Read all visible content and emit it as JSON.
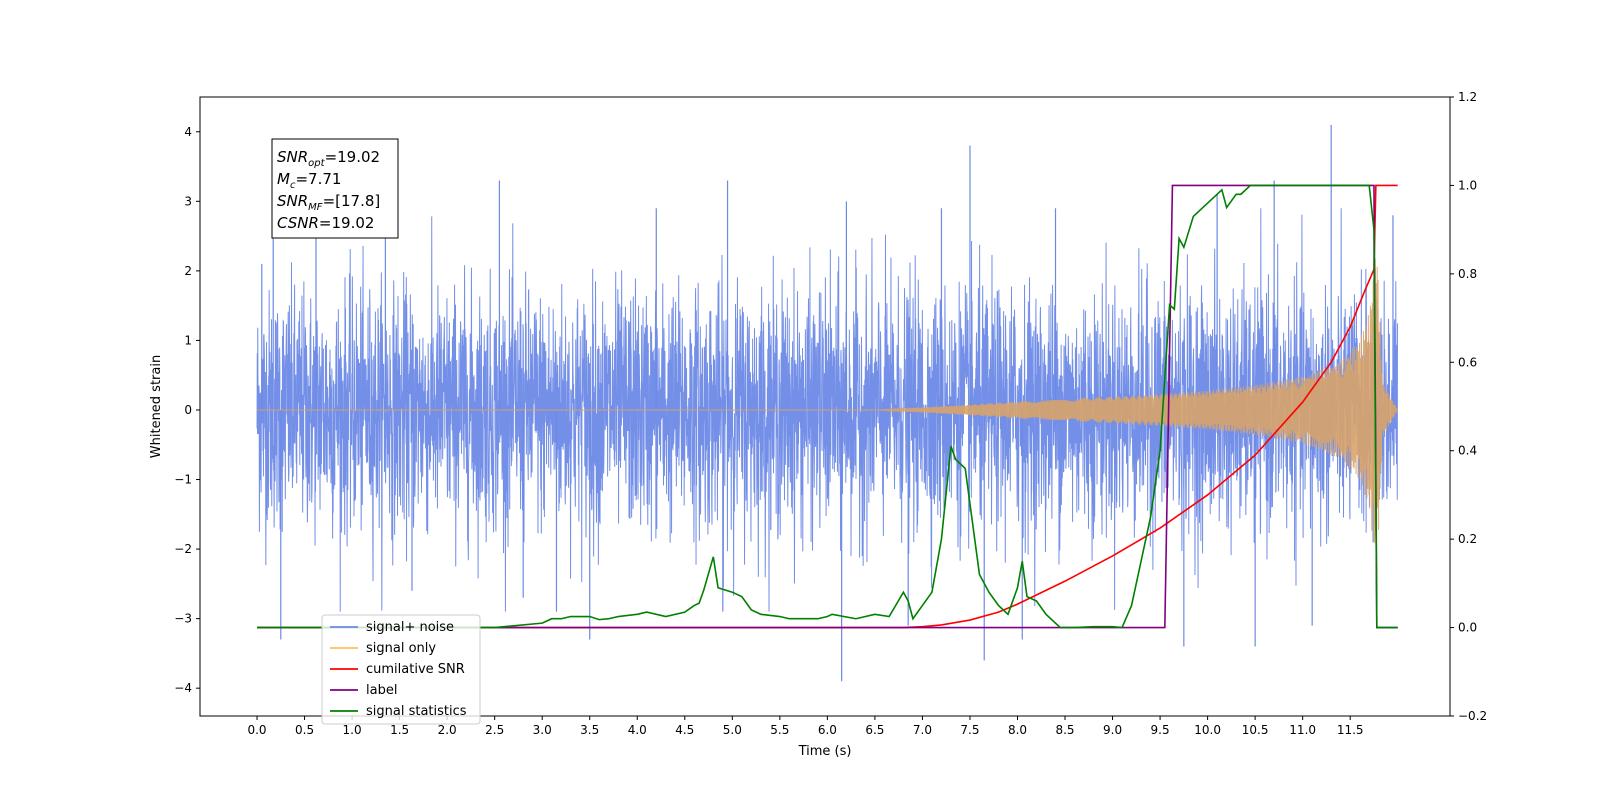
{
  "chart_data": {
    "type": "line",
    "xlabel": "Time (s)",
    "ylabel": "Whitened strain",
    "xlim": [
      -0.6,
      12.55
    ],
    "ylim": [
      -4.4,
      4.5
    ],
    "y2lim": [
      -0.2,
      1.2
    ],
    "x_ticks": [
      0.0,
      0.5,
      1.0,
      1.5,
      2.0,
      2.5,
      3.0,
      3.5,
      4.0,
      4.5,
      5.0,
      5.5,
      6.0,
      6.5,
      7.0,
      7.5,
      8.0,
      8.5,
      9.0,
      9.5,
      10.0,
      10.5,
      11.0,
      11.5
    ],
    "x_tick_labels": [
      "0.0",
      "0.5",
      "1.0",
      "1.5",
      "2.0",
      "2.5",
      "3.0",
      "3.5",
      "4.0",
      "4.5",
      "5.0",
      "5.5",
      "6.0",
      "6.5",
      "7.0",
      "7.5",
      "8.0",
      "8.5",
      "9.0",
      "9.5",
      "10.0",
      "10.5",
      "11.0",
      "11.5"
    ],
    "y_ticks": [
      -4,
      -3,
      -2,
      -1,
      0,
      1,
      2,
      3,
      4
    ],
    "y_tick_labels": [
      "−4",
      "−3",
      "−2",
      "−1",
      "0",
      "1",
      "2",
      "3",
      "4"
    ],
    "y2_ticks": [
      -0.2,
      0.0,
      0.2,
      0.4,
      0.6,
      0.8,
      1.0,
      1.2
    ],
    "y2_tick_labels": [
      "−0.2",
      "0.0",
      "0.2",
      "0.4",
      "0.6",
      "0.8",
      "1.0",
      "1.2"
    ],
    "legend_position": "lower-left",
    "legend": [
      {
        "label": "signal+ noise",
        "color": "#6b89e6"
      },
      {
        "label": "signal only",
        "color": "#ffbf5a"
      },
      {
        "label": "cumilative SNR",
        "color": "#ff0000"
      },
      {
        "label": "label",
        "color": "#800080"
      },
      {
        "label": "signal statistics",
        "color": "#008000"
      }
    ],
    "annotation_lines": [
      {
        "base": "SNR",
        "sub": "opt",
        "value": "=19.02"
      },
      {
        "base": "M",
        "sub": "c",
        "value": "=7.71"
      },
      {
        "base": "SNR",
        "sub": "MF",
        "value": "=[17.8]"
      },
      {
        "base": "CSNR",
        "sub": "",
        "value": "=19.02"
      }
    ],
    "series": [
      {
        "name": "signal+ noise",
        "axis": "left",
        "color": "#6b89e6",
        "kind": "noise",
        "x_range": [
          0.0,
          12.0
        ],
        "std": 0.85,
        "spikes": [
          [
            0.05,
            2.1
          ],
          [
            0.17,
            2.9
          ],
          [
            0.25,
            -3.3
          ],
          [
            0.62,
            2.9
          ],
          [
            1.35,
            3.1
          ],
          [
            1.63,
            -2.6
          ],
          [
            2.55,
            3.3
          ],
          [
            2.8,
            -2.7
          ],
          [
            3.15,
            -2.9
          ],
          [
            3.5,
            -3.3
          ],
          [
            4.2,
            2.9
          ],
          [
            4.9,
            -2.9
          ],
          [
            4.95,
            3.3
          ],
          [
            6.15,
            -3.9
          ],
          [
            6.2,
            3.0
          ],
          [
            6.85,
            -3.1
          ],
          [
            7.2,
            2.9
          ],
          [
            7.5,
            3.8
          ],
          [
            7.65,
            -3.6
          ],
          [
            8.05,
            -3.3
          ],
          [
            8.4,
            2.9
          ],
          [
            9.75,
            -3.4
          ],
          [
            10.1,
            3.1
          ],
          [
            10.5,
            -3.4
          ],
          [
            10.7,
            3.3
          ],
          [
            11.1,
            -3.1
          ],
          [
            11.3,
            4.1
          ],
          [
            11.75,
            2.7
          ],
          [
            11.95,
            2.8
          ]
        ]
      },
      {
        "name": "signal only",
        "axis": "left",
        "color": "#d8a36a",
        "kind": "chirp",
        "x_range": [
          0.0,
          12.0
        ],
        "envelope": [
          [
            0.0,
            0.0
          ],
          [
            6.5,
            0.0
          ],
          [
            7.2,
            0.05
          ],
          [
            8.0,
            0.12
          ],
          [
            9.0,
            0.19
          ],
          [
            9.5,
            0.23
          ],
          [
            10.0,
            0.28
          ],
          [
            10.5,
            0.36
          ],
          [
            11.0,
            0.48
          ],
          [
            11.4,
            0.7
          ],
          [
            11.6,
            1.0
          ],
          [
            11.7,
            1.4
          ],
          [
            11.78,
            2.4
          ],
          [
            11.84,
            0.4
          ],
          [
            12.0,
            0.0
          ]
        ]
      },
      {
        "name": "cumilative SNR",
        "axis": "right",
        "color": "#ff0000",
        "x": [
          0.0,
          6.8,
          7.0,
          7.2,
          7.5,
          7.8,
          8.0,
          8.5,
          9.0,
          9.5,
          10.0,
          10.5,
          11.0,
          11.3,
          11.5,
          11.65,
          11.75,
          11.77,
          11.8,
          12.0
        ],
        "values": [
          0.0,
          0.0,
          0.002,
          0.006,
          0.017,
          0.035,
          0.053,
          0.105,
          0.162,
          0.225,
          0.3,
          0.39,
          0.51,
          0.6,
          0.68,
          0.76,
          0.81,
          1.0,
          1.0,
          1.0
        ]
      },
      {
        "name": "label",
        "axis": "right",
        "color": "#800080",
        "x": [
          0.0,
          9.55,
          9.63,
          11.75,
          11.78,
          12.0
        ],
        "values": [
          0.0,
          0.0,
          1.0,
          1.0,
          0.0,
          0.0
        ]
      },
      {
        "name": "signal statistics",
        "axis": "right",
        "color": "#008000",
        "x": [
          0.0,
          2.5,
          3.0,
          3.1,
          3.2,
          3.3,
          3.5,
          3.6,
          3.7,
          3.8,
          4.0,
          4.1,
          4.3,
          4.5,
          4.6,
          4.65,
          4.7,
          4.8,
          4.85,
          5.0,
          5.1,
          5.2,
          5.3,
          5.5,
          5.6,
          5.9,
          6.0,
          6.05,
          6.3,
          6.5,
          6.65,
          6.8,
          6.85,
          6.9,
          7.0,
          7.1,
          7.2,
          7.3,
          7.35,
          7.45,
          7.55,
          7.6,
          7.7,
          7.8,
          7.9,
          8.0,
          8.05,
          8.1,
          8.2,
          8.3,
          8.45,
          8.6,
          8.8,
          9.0,
          9.1,
          9.2,
          9.3,
          9.4,
          9.5,
          9.6,
          9.65,
          9.7,
          9.75,
          9.85,
          9.95,
          10.05,
          10.15,
          10.2,
          10.3,
          10.35,
          10.45,
          10.6,
          10.8,
          11.0,
          11.3,
          11.5,
          11.6,
          11.7,
          11.75,
          11.78,
          11.8,
          11.85,
          12.0
        ],
        "values": [
          0.0,
          0.0,
          0.01,
          0.02,
          0.02,
          0.025,
          0.025,
          0.018,
          0.02,
          0.025,
          0.03,
          0.035,
          0.025,
          0.035,
          0.05,
          0.055,
          0.085,
          0.16,
          0.09,
          0.08,
          0.07,
          0.04,
          0.03,
          0.025,
          0.02,
          0.02,
          0.025,
          0.03,
          0.02,
          0.03,
          0.025,
          0.08,
          0.06,
          0.02,
          0.05,
          0.08,
          0.2,
          0.41,
          0.38,
          0.36,
          0.2,
          0.12,
          0.08,
          0.05,
          0.03,
          0.09,
          0.15,
          0.07,
          0.06,
          0.03,
          0.0,
          0.0,
          0.002,
          0.002,
          0.0,
          0.05,
          0.15,
          0.25,
          0.4,
          0.73,
          0.72,
          0.88,
          0.86,
          0.93,
          0.95,
          0.97,
          0.99,
          0.95,
          0.98,
          0.98,
          1.0,
          1.0,
          1.0,
          1.0,
          1.0,
          1.0,
          1.0,
          1.0,
          0.9,
          0.0,
          0.0,
          0.0,
          0.0
        ]
      }
    ]
  }
}
